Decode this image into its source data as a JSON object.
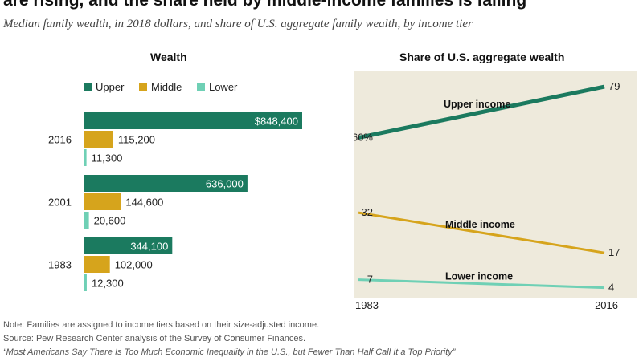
{
  "title": "are rising, and the share held by middle-income families is falling",
  "subtitle": "Median family wealth, in 2018 dollars, and share of U.S. aggregate family wealth, by income tier",
  "colors": {
    "upper": "#1b7a5f",
    "middle": "#d6a41c",
    "lower": "#6fd0b5",
    "plot_bg": "#eeeadc"
  },
  "chart_data": [
    {
      "type": "bar",
      "title": "Wealth",
      "orientation": "horizontal",
      "categories": [
        "2016",
        "2001",
        "1983"
      ],
      "series": [
        {
          "name": "Upper",
          "values": [
            848400,
            636000,
            344100
          ],
          "labels": [
            "$848,400",
            "636,000",
            "344,100"
          ]
        },
        {
          "name": "Middle",
          "values": [
            115200,
            144600,
            102000
          ],
          "labels": [
            "115,200",
            "144,600",
            "102,000"
          ]
        },
        {
          "name": "Lower",
          "values": [
            11300,
            20600,
            12300
          ],
          "labels": [
            "11,300",
            "20,600",
            "12,300"
          ]
        }
      ],
      "legend_placement": "top",
      "grid": false
    },
    {
      "type": "line",
      "title": "Share of U.S. aggregate wealth",
      "x": [
        "1983",
        "2016"
      ],
      "series": [
        {
          "name": "Upper income",
          "values": [
            60,
            79
          ],
          "labels": [
            "60%",
            "79"
          ]
        },
        {
          "name": "Middle income",
          "values": [
            32,
            17
          ],
          "labels": [
            "32",
            "17"
          ]
        },
        {
          "name": "Lower income",
          "values": [
            7,
            4
          ],
          "labels": [
            "7",
            "4"
          ]
        }
      ],
      "ylim": [
        0,
        85
      ],
      "grid": false,
      "series_labels_on_lines": true
    }
  ],
  "footnotes": {
    "note": "Note: Families are assigned to income tiers based on their size-adjusted income.",
    "source": "Source: Pew Research Center analysis of the Survey of Consumer Finances.",
    "report": "“Most Americans Say There Is Too Much Economic Inequality in the U.S., but Fewer Than Half Call It a Top Priority”"
  }
}
